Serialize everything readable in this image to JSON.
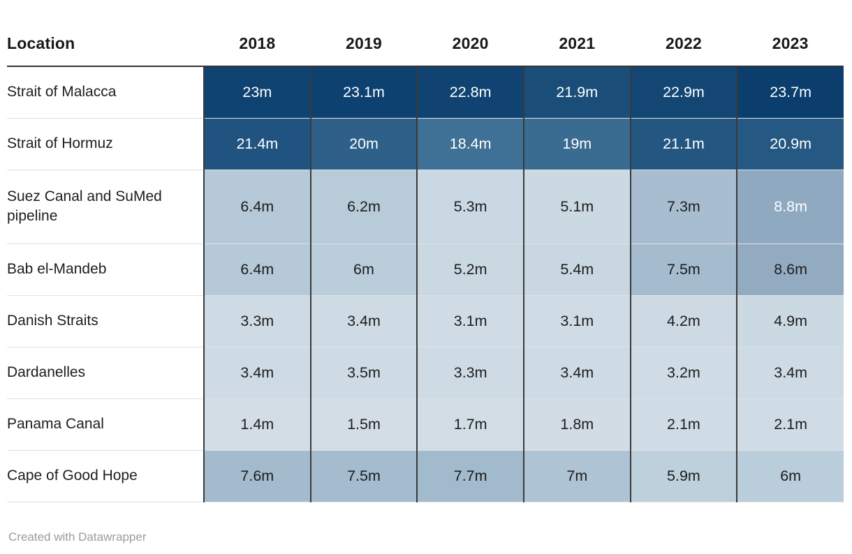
{
  "table": {
    "columns": [
      "Location",
      "2018",
      "2019",
      "2020",
      "2021",
      "2022",
      "2023"
    ],
    "rows": [
      {
        "label": "Strait of Malacca",
        "tall": false,
        "cells": [
          {
            "v": "23m",
            "bg": "#0e4270",
            "fg": "#ffffff"
          },
          {
            "v": "23.1m",
            "bg": "#0d4270",
            "fg": "#ffffff"
          },
          {
            "v": "22.8m",
            "bg": "#104371",
            "fg": "#ffffff"
          },
          {
            "v": "21.9m",
            "bg": "#1a4e78",
            "fg": "#ffffff"
          },
          {
            "v": "22.9m",
            "bg": "#134673",
            "fg": "#ffffff"
          },
          {
            "v": "23.7m",
            "bg": "#0b3e6d",
            "fg": "#ffffff"
          }
        ]
      },
      {
        "label": "Strait of Hormuz",
        "tall": false,
        "cells": [
          {
            "v": "21.4m",
            "bg": "#20537f",
            "fg": "#ffffff"
          },
          {
            "v": "20m",
            "bg": "#2e6089",
            "fg": "#ffffff"
          },
          {
            "v": "18.4m",
            "bg": "#3f7095",
            "fg": "#ffffff"
          },
          {
            "v": "19m",
            "bg": "#3a6b91",
            "fg": "#ffffff"
          },
          {
            "v": "21.1m",
            "bg": "#235680",
            "fg": "#ffffff"
          },
          {
            "v": "20.9m",
            "bg": "#255882",
            "fg": "#ffffff"
          }
        ]
      },
      {
        "label": "Suez Canal and SuMed pipeline",
        "tall": true,
        "cells": [
          {
            "v": "6.4m",
            "bg": "#b5c9d8",
            "fg": "#1d1d1d"
          },
          {
            "v": "6.2m",
            "bg": "#b7cbd9",
            "fg": "#1d1d1d"
          },
          {
            "v": "5.3m",
            "bg": "#c9d8e2",
            "fg": "#1d1d1d"
          },
          {
            "v": "5.1m",
            "bg": "#cbd9e3",
            "fg": "#1d1d1d"
          },
          {
            "v": "7.3m",
            "bg": "#a8bed0",
            "fg": "#1d1d1d"
          },
          {
            "v": "8.8m",
            "bg": "#8ea9c0",
            "fg": "#ffffff"
          }
        ]
      },
      {
        "label": "Bab el-Mandeb",
        "tall": false,
        "cells": [
          {
            "v": "6.4m",
            "bg": "#b5c9d8",
            "fg": "#1d1d1d"
          },
          {
            "v": "6m",
            "bg": "#bacddb",
            "fg": "#1d1d1d"
          },
          {
            "v": "5.2m",
            "bg": "#cad8e2",
            "fg": "#1d1d1d"
          },
          {
            "v": "5.4m",
            "bg": "#c8d7e1",
            "fg": "#1d1d1d"
          },
          {
            "v": "7.5m",
            "bg": "#a4bcce",
            "fg": "#1d1d1d"
          },
          {
            "v": "8.6m",
            "bg": "#92abc1",
            "fg": "#1d1d1d"
          }
        ]
      },
      {
        "label": "Danish Straits",
        "tall": false,
        "cells": [
          {
            "v": "3.3m",
            "bg": "#cfdbe4",
            "fg": "#1d1d1d"
          },
          {
            "v": "3.4m",
            "bg": "#cfdbe4",
            "fg": "#1d1d1d"
          },
          {
            "v": "3.1m",
            "bg": "#d0dce5",
            "fg": "#1d1d1d"
          },
          {
            "v": "3.1m",
            "bg": "#d0dce5",
            "fg": "#1d1d1d"
          },
          {
            "v": "4.2m",
            "bg": "#cdd9e3",
            "fg": "#1d1d1d"
          },
          {
            "v": "4.9m",
            "bg": "#cbd9e3",
            "fg": "#1d1d1d"
          }
        ]
      },
      {
        "label": "Dardanelles",
        "tall": false,
        "cells": [
          {
            "v": "3.4m",
            "bg": "#cfdbe4",
            "fg": "#1d1d1d"
          },
          {
            "v": "3.5m",
            "bg": "#cedbe4",
            "fg": "#1d1d1d"
          },
          {
            "v": "3.3m",
            "bg": "#cfdbe4",
            "fg": "#1d1d1d"
          },
          {
            "v": "3.4m",
            "bg": "#cfdbe4",
            "fg": "#1d1d1d"
          },
          {
            "v": "3.2m",
            "bg": "#d0dce5",
            "fg": "#1d1d1d"
          },
          {
            "v": "3.4m",
            "bg": "#cfdbe4",
            "fg": "#1d1d1d"
          }
        ]
      },
      {
        "label": "Panama Canal",
        "tall": false,
        "cells": [
          {
            "v": "1.4m",
            "bg": "#d3dde6",
            "fg": "#1d1d1d"
          },
          {
            "v": "1.5m",
            "bg": "#d2dde6",
            "fg": "#1d1d1d"
          },
          {
            "v": "1.7m",
            "bg": "#d2dde5",
            "fg": "#1d1d1d"
          },
          {
            "v": "1.8m",
            "bg": "#d1dce5",
            "fg": "#1d1d1d"
          },
          {
            "v": "2.1m",
            "bg": "#d0dce5",
            "fg": "#1d1d1d"
          },
          {
            "v": "2.1m",
            "bg": "#d0dce5",
            "fg": "#1d1d1d"
          }
        ]
      },
      {
        "label": "Cape of Good Hope",
        "tall": false,
        "cells": [
          {
            "v": "7.6m",
            "bg": "#a3bbcd",
            "fg": "#1d1d1d"
          },
          {
            "v": "7.5m",
            "bg": "#a4bcce",
            "fg": "#1d1d1d"
          },
          {
            "v": "7.7m",
            "bg": "#a1bacc",
            "fg": "#1d1d1d"
          },
          {
            "v": "7m",
            "bg": "#aec3d3",
            "fg": "#1d1d1d"
          },
          {
            "v": "5.9m",
            "bg": "#bdd0dc",
            "fg": "#1d1d1d"
          },
          {
            "v": "6m",
            "bg": "#bacddb",
            "fg": "#1d1d1d"
          }
        ]
      }
    ]
  },
  "footer": {
    "attribution": "Created with Datawrapper"
  },
  "colors": {
    "scale_min": "#d3dde6",
    "scale_max": "#0b3e6d",
    "grid_vertical": "#3a3a3a",
    "header_rule": "#333333",
    "row_divider": "#dde2e6",
    "footer_text": "#9b9b9b"
  },
  "chart_data": {
    "type": "heatmap",
    "title": "",
    "unit": "m",
    "value_label_suffix": "m",
    "categories": [
      "2018",
      "2019",
      "2020",
      "2021",
      "2022",
      "2023"
    ],
    "row_header": "Location",
    "series": [
      {
        "name": "Strait of Malacca",
        "values": [
          23,
          23.1,
          22.8,
          21.9,
          22.9,
          23.7
        ]
      },
      {
        "name": "Strait of Hormuz",
        "values": [
          21.4,
          20,
          18.4,
          19,
          21.1,
          20.9
        ]
      },
      {
        "name": "Suez Canal and SuMed pipeline",
        "values": [
          6.4,
          6.2,
          5.3,
          5.1,
          7.3,
          8.8
        ]
      },
      {
        "name": "Bab el-Mandeb",
        "values": [
          6.4,
          6,
          5.2,
          5.4,
          7.5,
          8.6
        ]
      },
      {
        "name": "Danish Straits",
        "values": [
          3.3,
          3.4,
          3.1,
          3.1,
          4.2,
          4.9
        ]
      },
      {
        "name": "Dardanelles",
        "values": [
          3.4,
          3.5,
          3.3,
          3.4,
          3.2,
          3.4
        ]
      },
      {
        "name": "Panama Canal",
        "values": [
          1.4,
          1.5,
          1.7,
          1.8,
          2.1,
          2.1
        ]
      },
      {
        "name": "Cape of Good Hope",
        "values": [
          7.6,
          7.5,
          7.7,
          7,
          5.9,
          6
        ]
      }
    ],
    "value_range": [
      1.4,
      23.7
    ],
    "legend_position": "none",
    "grid": "cell-borders",
    "attribution": "Created with Datawrapper"
  }
}
